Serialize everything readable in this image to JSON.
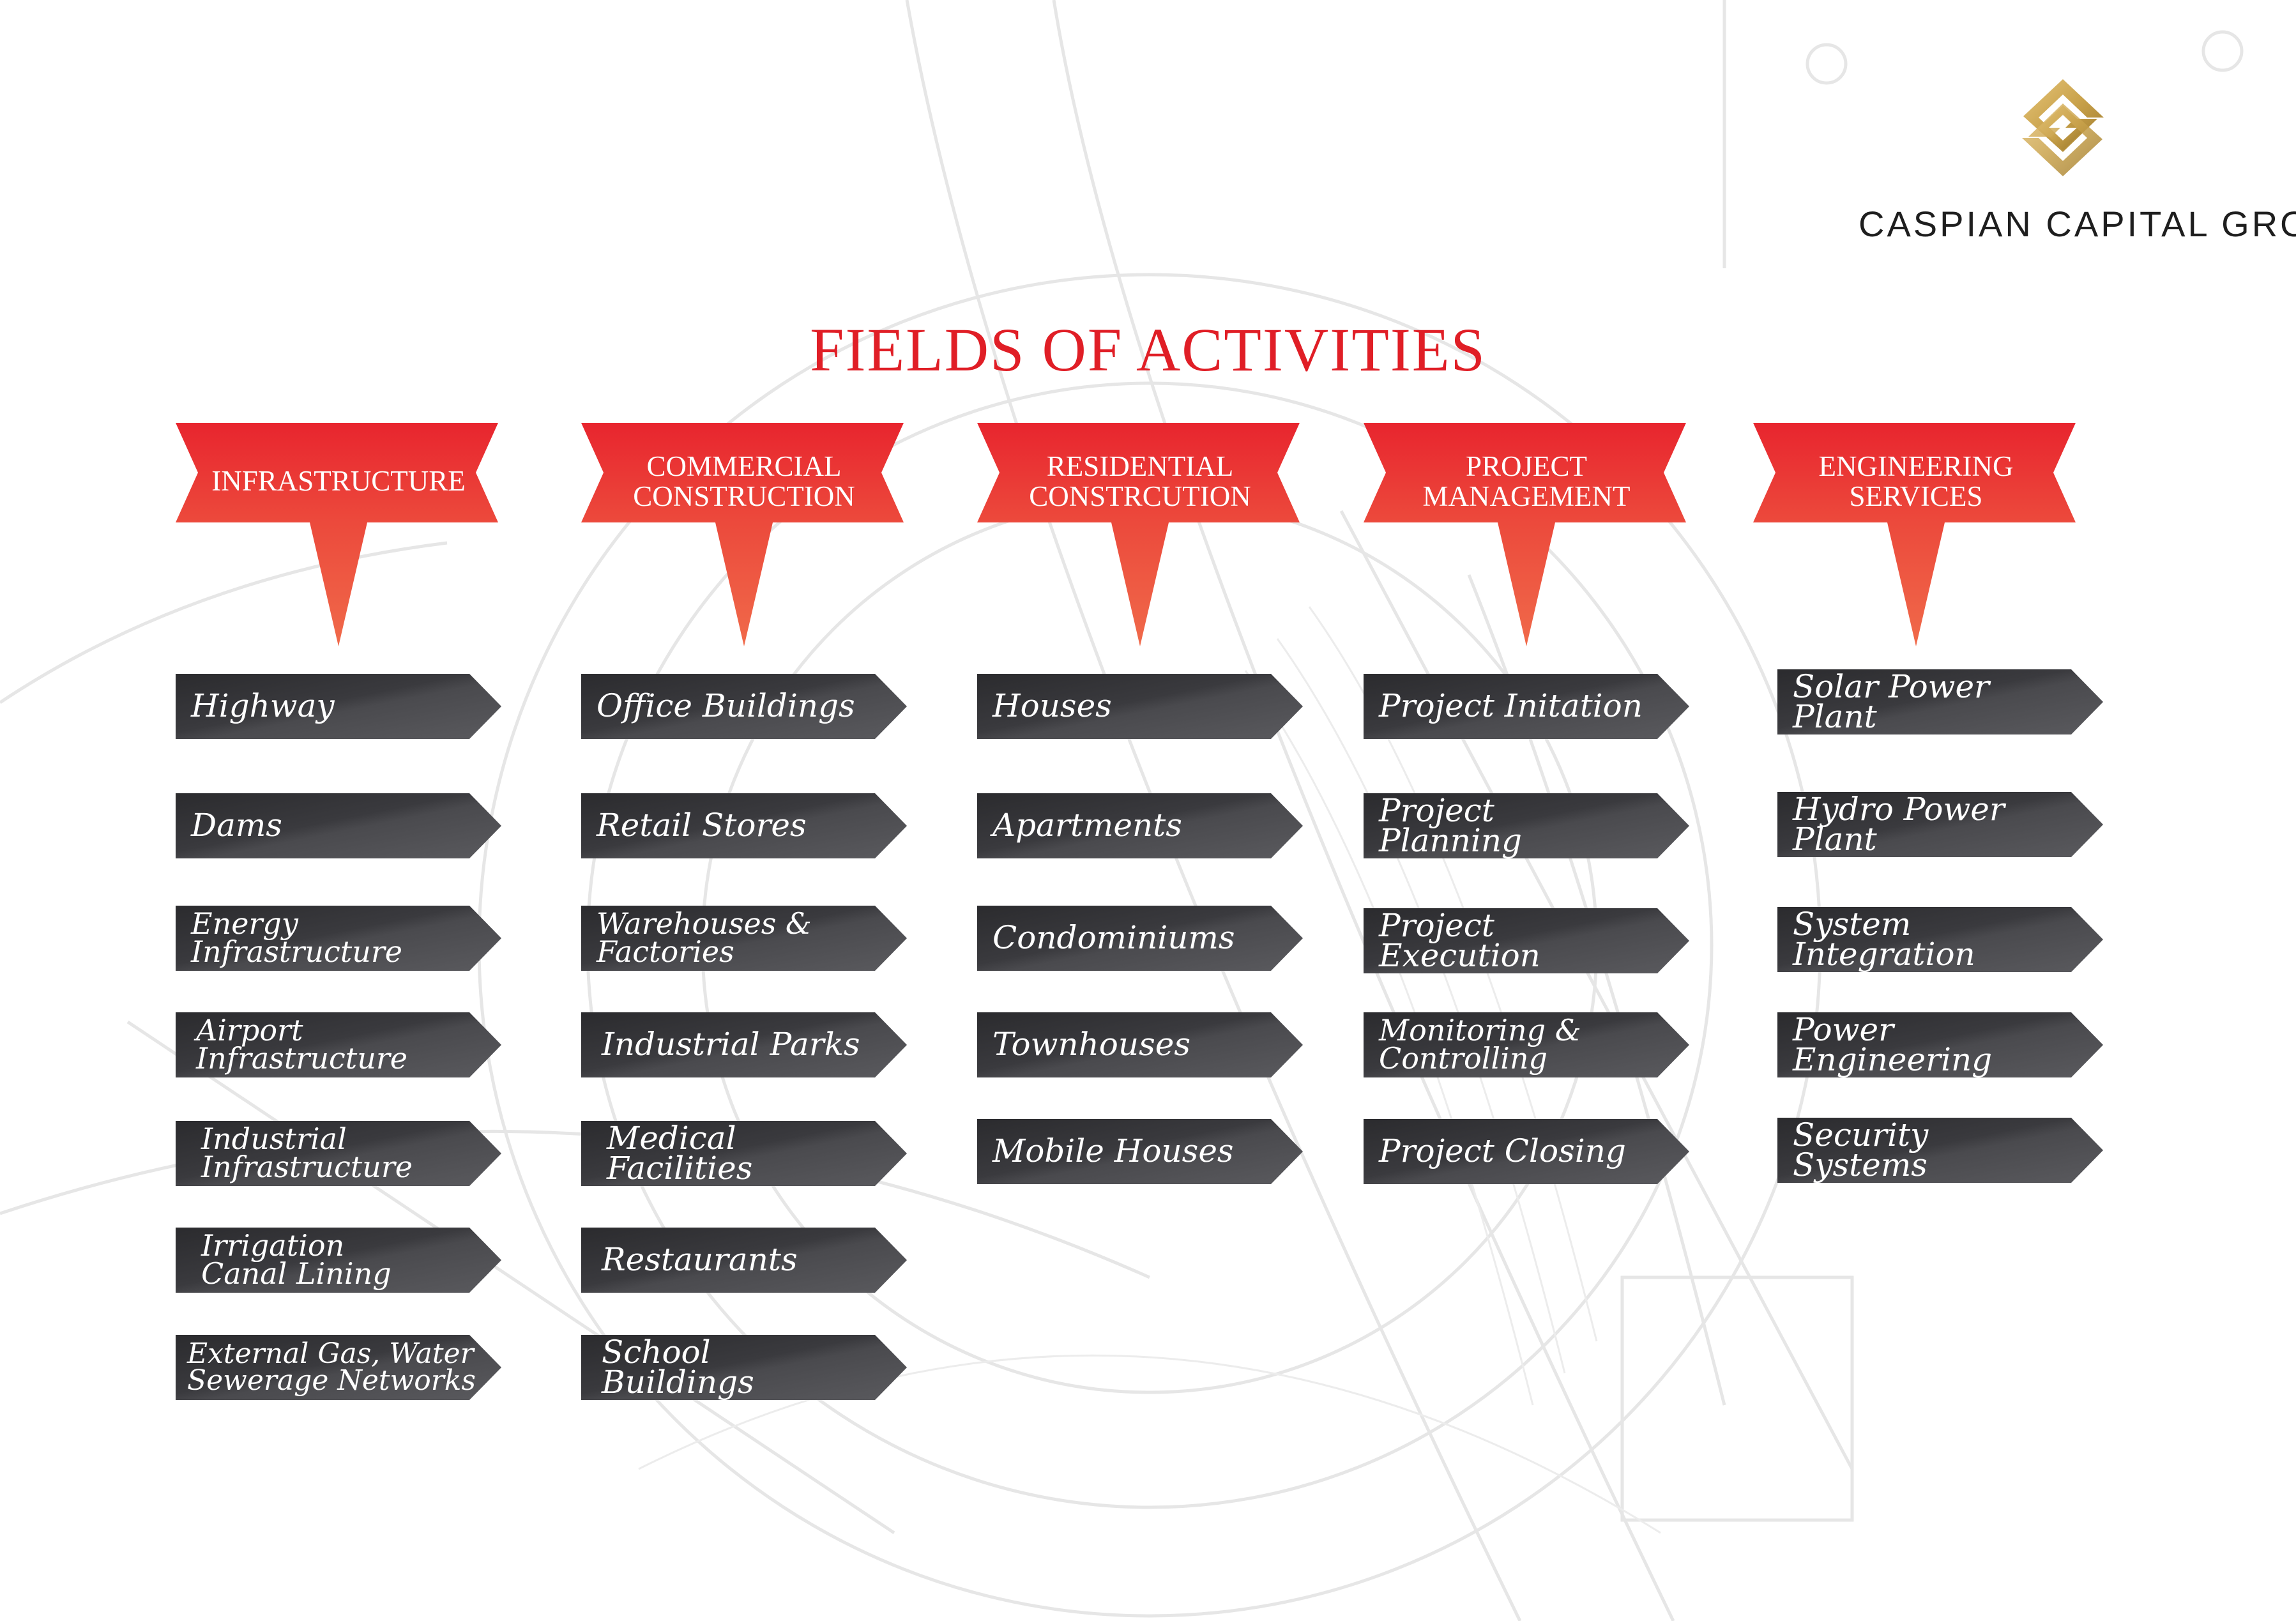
{
  "brand": {
    "name": "CASPIAN CAPITAL GROUP",
    "logo_icon": "caspian-logo-icon",
    "logo_color": "#c9a24b"
  },
  "title": "FIELDS OF ACTIVITIES",
  "colors": {
    "title": "#e01e26",
    "header_top": "#e8252e",
    "header_bottom": "#f06a4a",
    "item_dark": "#2b2b2e",
    "item_light": "#5a5a5e"
  },
  "columns": [
    {
      "header": "INFRASTRUCTURE",
      "items": [
        "Highway",
        "Dams",
        "Energy\nInfrastructure",
        "Airport\nInfrastructure",
        "Industrial\nInfrastructure",
        "Irrigation\nCanal Lining",
        "External Gas, Water\nSewerage Networks"
      ]
    },
    {
      "header": "COMMERCIAL\nCONSTRUCTION",
      "items": [
        "Office Buildings",
        "Retail Stores",
        "Warehouses &\nFactories",
        "Industrial Parks",
        "Medical Facilities",
        "Restaurants",
        "School Buildings"
      ]
    },
    {
      "header": "RESIDENTIAL\nCONSTRCUTION",
      "items": [
        "Houses",
        "Apartments",
        "Condominiums",
        "Townhouses",
        "Mobile Houses"
      ]
    },
    {
      "header": "PROJECT\nMANAGEMENT",
      "items": [
        "Project Initation",
        "Project Planning",
        "Project Execution",
        "Monitoring &\nControlling",
        "Project Closing"
      ]
    },
    {
      "header": "ENGINEERING\nSERVICES",
      "items": [
        "Solar Power Plant",
        "Hydro Power Plant",
        "System Integration",
        "Power Engineering",
        "Security Systems"
      ]
    }
  ]
}
